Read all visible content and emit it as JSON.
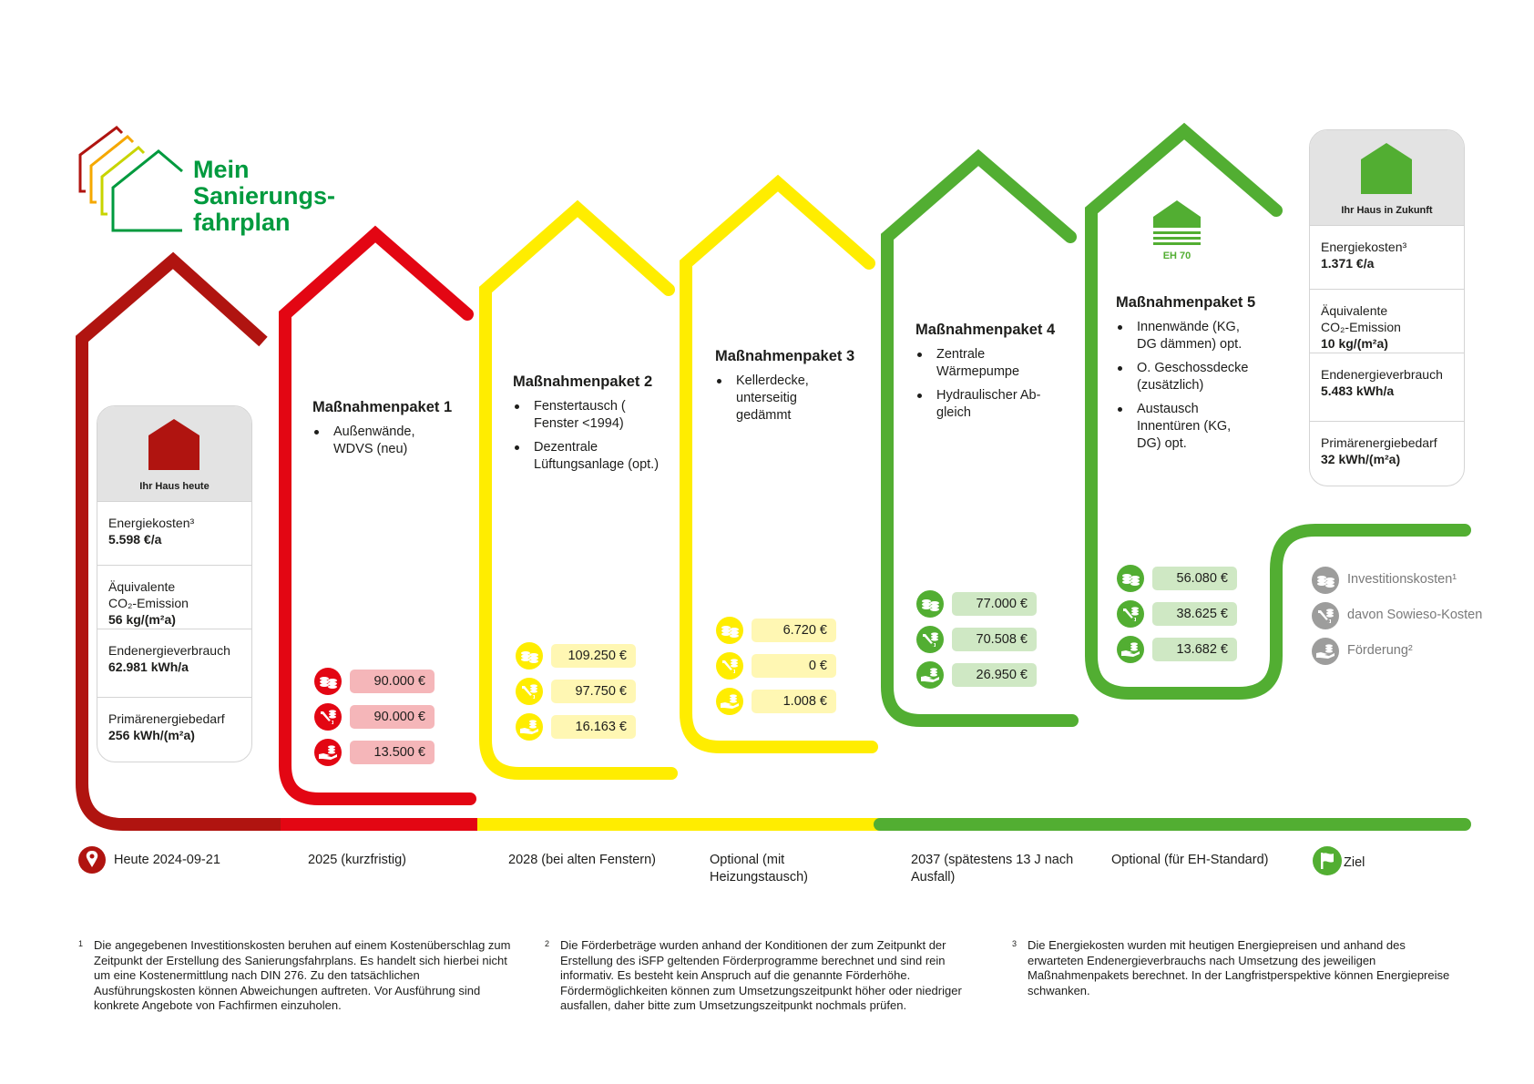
{
  "logo": {
    "line1": "Mein",
    "line2": "Sanierungs-",
    "line3": "fahrplan"
  },
  "colors": {
    "darkred": "#b01410",
    "red": "#e30613",
    "yellow": "#ffed00",
    "green": "#52ae32",
    "grey": "#9d9d9c"
  },
  "today_card": {
    "caption": "Ihr Haus heute",
    "rows": [
      {
        "label": "Energiekosten³",
        "value": "5.598 €/a"
      },
      {
        "label": "Äquivalente CO₂-Emission",
        "value": "56 kg/(m²a)"
      },
      {
        "label": "Endenergieverbrauch",
        "value": "62.981 kWh/a"
      },
      {
        "label": "Primärenergiebedarf",
        "value": "256 kWh/(m²a)"
      }
    ]
  },
  "future_card": {
    "caption": "Ihr Haus in Zukunft",
    "rows": [
      {
        "label": "Energiekosten³",
        "value": "1.371 €/a"
      },
      {
        "label": "Äquivalente CO₂-Emission",
        "value": "10 kg/(m²a)"
      },
      {
        "label": "Endenergieverbrauch",
        "value": "5.483 kWh/a"
      },
      {
        "label": "Primärenergiebedarf",
        "value": "32 kWh/(m²a)"
      }
    ]
  },
  "packages": [
    {
      "title": "Maßnahmenpaket 1",
      "items": [
        "Außenwände, WDVS (neu)"
      ],
      "costs": [
        "90.000 €",
        "90.000 €",
        "13.500 €"
      ],
      "color": "#e30613",
      "box_color": "#f5b6b9",
      "timeline": "2025 (kurzfristig)"
    },
    {
      "title": "Maßnahmenpaket 2",
      "items": [
        "Fenstertausch ( Fenster <1994)",
        "Dezentrale Lüftungsanlage (opt.)"
      ],
      "costs": [
        "109.250 €",
        "97.750 €",
        "16.163 €"
      ],
      "color": "#ffed00",
      "box_color": "#fff7b3",
      "timeline": "2028 (bei alten Fenstern)"
    },
    {
      "title": "Maßnahmenpaket 3",
      "items": [
        "Kellerdecke, unterseitig gedämmt"
      ],
      "costs": [
        "6.720 €",
        "0 €",
        "1.008 €"
      ],
      "color": "#ffed00",
      "box_color": "#fff7b3",
      "timeline": "Optional (mit Heizungstausch)"
    },
    {
      "title": "Maßnahmenpaket 4",
      "items": [
        "Zentrale Wärmepumpe",
        "Hydraulischer Ab- gleich"
      ],
      "costs": [
        "77.000 €",
        "70.508 €",
        "26.950 €"
      ],
      "color": "#52ae32",
      "box_color": "#cfe8c4",
      "timeline": "2037 (spätestens 13 J nach Ausfall)"
    },
    {
      "title": "Maßnahmenpaket 5",
      "items": [
        "Innenwände (KG, DG dämmen) opt.",
        "O. Geschossdecke (zusätzlich)",
        "Austausch Innentüren (KG, DG) opt."
      ],
      "costs": [
        "56.080 €",
        "38.625 €",
        "13.682 €"
      ],
      "color": "#52ae32",
      "box_color": "#cfe8c4",
      "timeline": "Optional (für EH-Standard)",
      "badge": "EH 70"
    }
  ],
  "legend": [
    {
      "icon": "coins-icon",
      "label": "Investitionskosten¹"
    },
    {
      "icon": "wrench-coins-icon",
      "label": "davon Sowieso-Kosten"
    },
    {
      "icon": "hand-coins-icon",
      "label": "Förderung²"
    }
  ],
  "timeline": {
    "start": "Heute 2024-09-21",
    "end": "Ziel"
  },
  "footnotes": [
    {
      "mark": "1",
      "text": "Die angegebenen Investitionskosten beruhen auf einem Kostenüberschlag zum Zeitpunkt der Erstellung des Sanierungsfahrplans. Es handelt sich hierbei nicht um eine Kostenermittlung nach DIN 276. Zu den tatsächlichen Ausführungskosten können Abweichungen auftreten. Vor Ausführung sind konkrete Angebote von Fachfirmen einzuholen."
    },
    {
      "mark": "2",
      "text": "Die Förderbeträge wurden anhand der Konditionen der zum Zeitpunkt der Erstellung des iSFP geltenden Förderprogramme berechnet und sind rein informativ. Es besteht kein Anspruch auf die genannte Förderhöhe. Fördermöglichkeiten können zum Umsetzungszeitpunkt höher oder niedriger ausfallen, daher bitte zum Umsetzungszeitpunkt nochmals prüfen."
    },
    {
      "mark": "3",
      "text": "Die Energiekosten wurden mit heutigen Energiepreisen und anhand des erwarteten Endenergieverbrauchs nach Umsetzung des jeweiligen Maßnahmenpakets berechnet. In der Langfristperspektive können Energiepreise schwanken."
    }
  ]
}
